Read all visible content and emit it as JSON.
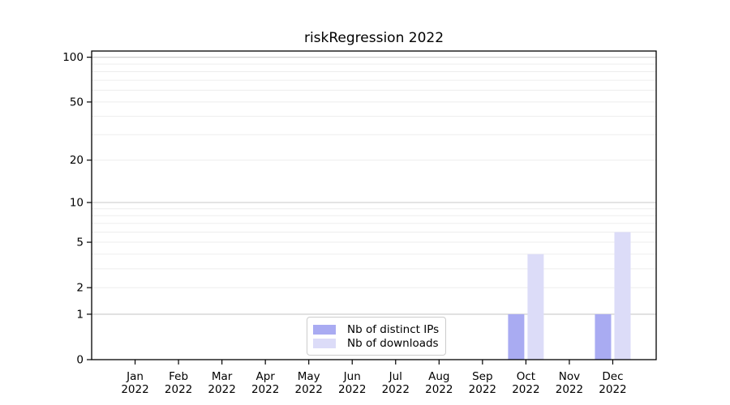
{
  "chart_data": {
    "type": "bar",
    "title": "riskRegression 2022",
    "year_label": "2022",
    "month_labels": [
      "Jan",
      "Feb",
      "Mar",
      "Apr",
      "May",
      "Jun",
      "Jul",
      "Aug",
      "Sep",
      "Oct",
      "Nov",
      "Dec"
    ],
    "categories": [
      "Jan 2022",
      "Feb 2022",
      "Mar 2022",
      "Apr 2022",
      "May 2022",
      "Jun 2022",
      "Jul 2022",
      "Aug 2022",
      "Sep 2022",
      "Oct 2022",
      "Nov 2022",
      "Dec 2022"
    ],
    "series": [
      {
        "name": "Nb of distinct IPs",
        "color": "#a9abf2",
        "values": [
          0,
          0,
          0,
          0,
          0,
          0,
          0,
          0,
          0,
          1,
          0,
          1
        ]
      },
      {
        "name": "Nb of downloads",
        "color": "#dcdcf8",
        "values": [
          0,
          0,
          0,
          0,
          0,
          0,
          0,
          0,
          0,
          4,
          0,
          6
        ]
      }
    ],
    "yscale": "log1p",
    "ylim": [
      0,
      110
    ],
    "y_ticks": [
      0,
      1,
      2,
      5,
      10,
      20,
      50,
      100
    ],
    "y_major_gridlines": [
      1,
      10,
      100
    ],
    "y_minor_gridlines": [
      2,
      3,
      4,
      5,
      6,
      7,
      8,
      9,
      20,
      30,
      40,
      50,
      60,
      70,
      80,
      90
    ],
    "grid": {
      "major_color": "#c9c9c9",
      "minor_color": "#ededed",
      "orientation": "horizontal"
    },
    "axis_color": "#000000",
    "legend_position": "bottom-center"
  }
}
